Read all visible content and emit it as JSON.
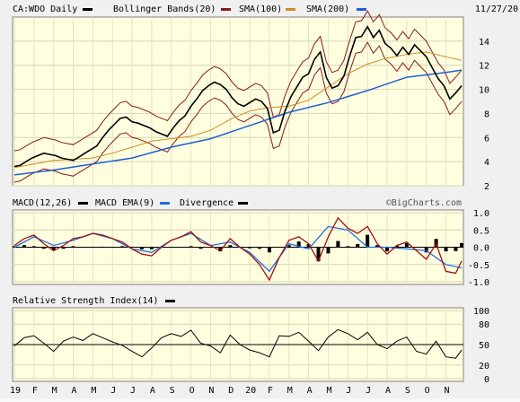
{
  "header": {
    "symbol": "CA:WDO Daily",
    "date": "11/27/20",
    "legend": [
      {
        "label": "Bollinger Bands(20)",
        "color": "#8b1a1a"
      },
      {
        "label": "SMA(100)",
        "color": "#d08a1e"
      },
      {
        "label": "SMA(200)",
        "color": "#1f5fd6"
      }
    ]
  },
  "macd": {
    "title": "MACD(12,26)",
    "legend": [
      {
        "label": "MACD EMA(9)",
        "color": "#1f6fe0"
      },
      {
        "label": "Divergence",
        "color": "#a01010"
      }
    ],
    "divergence_swatch": "#000000",
    "watermark": "©BigCharts.com"
  },
  "rsi": {
    "title": "Relative Strength Index(14)"
  },
  "chart_data": [
    {
      "type": "line",
      "title": "CA:WDO Daily",
      "ylim": [
        2,
        16
      ],
      "yticks": [
        2,
        4,
        6,
        8,
        10,
        12,
        14
      ],
      "grid": true,
      "legend_placement": "top",
      "x_labels": [
        "19",
        "F",
        "M",
        "A",
        "M",
        "J",
        "J",
        "A",
        "S",
        "O",
        "N",
        "D",
        "20",
        "F",
        "M",
        "A",
        "M",
        "J",
        "J",
        "A",
        "S",
        "O",
        "N"
      ],
      "series": [
        {
          "name": "price",
          "x": [
            0,
            0.3,
            0.6,
            0.9,
            1.2,
            1.5,
            1.8,
            2.1,
            2.4,
            2.7,
            3.0,
            3.3,
            3.6,
            3.9,
            4.2,
            4.5,
            4.8,
            5.1,
            5.4,
            5.7,
            6.0,
            6.3,
            6.6,
            6.9,
            7.2,
            7.5,
            7.8,
            8.1,
            8.4,
            8.7,
            9.0,
            9.3,
            9.6,
            9.9,
            10.2,
            10.5,
            10.8,
            11.1,
            11.4,
            11.7,
            12.0,
            12.3,
            12.6,
            12.9,
            13.2,
            13.5,
            13.8,
            14.1,
            14.4,
            14.7,
            15.0,
            15.3,
            15.6,
            15.9,
            16.2,
            16.5,
            16.8,
            17.1,
            17.4,
            17.7,
            18.0,
            18.3,
            18.6,
            18.9,
            19.2,
            19.5,
            19.8,
            20.1,
            20.4,
            20.7,
            21.0,
            21.3,
            21.6,
            21.9,
            22.2,
            22.5,
            22.8
          ],
          "y": [
            3.6,
            3.7,
            4.0,
            4.3,
            4.5,
            4.7,
            4.6,
            4.5,
            4.3,
            4.2,
            4.1,
            4.4,
            4.7,
            5.0,
            5.3,
            6.0,
            6.6,
            7.1,
            7.6,
            7.7,
            7.3,
            7.2,
            7.0,
            6.8,
            6.5,
            6.3,
            6.1,
            6.8,
            7.4,
            7.8,
            8.6,
            9.2,
            9.9,
            10.3,
            10.6,
            10.4,
            10.0,
            9.3,
            8.8,
            8.6,
            8.9,
            9.2,
            9.0,
            8.4,
            6.4,
            6.6,
            8.2,
            9.4,
            10.2,
            11.0,
            11.3,
            12.5,
            13.1,
            11.0,
            10.1,
            10.3,
            11.1,
            12.8,
            14.3,
            14.4,
            15.2,
            14.3,
            14.9,
            13.8,
            13.4,
            12.8,
            13.5,
            12.9,
            13.7,
            13.2,
            12.7,
            11.8,
            10.9,
            10.3,
            9.2,
            9.7,
            10.3
          ]
        },
        {
          "name": "SMA(100)",
          "x": [
            0,
            1,
            2,
            3,
            4,
            5,
            6,
            7,
            8,
            9,
            10,
            11,
            12,
            13,
            14,
            15,
            16,
            17,
            18,
            19,
            20,
            21,
            22,
            22.8
          ],
          "y": [
            3.5,
            3.8,
            4.1,
            4.2,
            4.3,
            4.7,
            5.2,
            5.7,
            5.9,
            6.1,
            6.6,
            7.5,
            8.2,
            8.5,
            8.6,
            9.1,
            10.2,
            11.3,
            12.1,
            12.6,
            12.9,
            13.1,
            12.7,
            12.4
          ]
        },
        {
          "name": "SMA(200)",
          "x": [
            0,
            2,
            4,
            6,
            8,
            10,
            12,
            14,
            16,
            18,
            20,
            22,
            22.8
          ],
          "y": [
            2.9,
            3.3,
            3.8,
            4.3,
            5.2,
            5.9,
            7.0,
            8.1,
            8.9,
            9.9,
            11.0,
            11.4,
            11.6
          ]
        }
      ]
    },
    {
      "type": "line",
      "title": "MACD(12,26)",
      "ylim": [
        -1.0,
        1.0
      ],
      "yticks": [
        -1.0,
        -0.5,
        0.0,
        0.5,
        1.0
      ],
      "series": [
        {
          "name": "MACD(12,26)",
          "x": [
            0,
            0.5,
            1,
            1.5,
            2,
            2.5,
            3,
            3.5,
            4,
            4.5,
            5,
            5.5,
            6,
            6.5,
            7,
            7.5,
            8,
            8.5,
            9,
            9.5,
            10,
            10.5,
            11,
            11.5,
            12,
            12.5,
            13,
            13.5,
            14,
            14.5,
            15,
            15.5,
            16,
            16.5,
            17,
            17.5,
            18,
            18.5,
            19,
            19.5,
            20,
            20.5,
            21,
            21.5,
            22,
            22.5,
            22.8
          ],
          "y": [
            0.05,
            0.25,
            0.35,
            0.1,
            -0.1,
            0.05,
            0.25,
            0.3,
            0.4,
            0.35,
            0.25,
            0.15,
            -0.05,
            -0.2,
            -0.25,
            0.0,
            0.2,
            0.3,
            0.45,
            0.15,
            0.05,
            -0.1,
            0.25,
            0.0,
            -0.2,
            -0.5,
            -0.95,
            -0.3,
            0.2,
            0.3,
            0.1,
            -0.4,
            0.3,
            0.85,
            0.55,
            0.4,
            0.6,
            0.1,
            -0.2,
            0.05,
            0.15,
            -0.1,
            -0.35,
            0.1,
            -0.7,
            -0.75,
            -0.4
          ]
        },
        {
          "name": "MACD EMA(9)",
          "x": [
            0,
            1,
            2,
            3,
            4,
            5,
            6,
            7,
            8,
            9,
            10,
            11,
            12,
            13,
            14,
            15,
            16,
            17,
            18,
            19,
            20,
            21,
            22,
            22.8
          ],
          "y": [
            0.0,
            0.3,
            0.05,
            0.2,
            0.4,
            0.25,
            -0.05,
            -0.15,
            0.2,
            0.4,
            0.05,
            0.15,
            -0.15,
            -0.7,
            0.1,
            -0.05,
            0.6,
            0.5,
            0.0,
            0.0,
            -0.05,
            -0.1,
            -0.5,
            -0.6
          ]
        }
      ]
    },
    {
      "type": "line",
      "title": "Relative Strength Index(14)",
      "ylim": [
        0,
        100
      ],
      "yticks": [
        0,
        20,
        50,
        80,
        100
      ],
      "series": [
        {
          "name": "Relative Strength Index(14)",
          "x": [
            0,
            0.5,
            1,
            1.5,
            2,
            2.5,
            3,
            3.5,
            4,
            4.5,
            5,
            5.5,
            6,
            6.5,
            7,
            7.5,
            8,
            8.5,
            9,
            9.5,
            10,
            10.5,
            11,
            11.5,
            12,
            12.5,
            13,
            13.5,
            14,
            14.5,
            15,
            15.5,
            16,
            16.5,
            17,
            17.5,
            18,
            18.5,
            19,
            19.5,
            20,
            20.5,
            21,
            21.5,
            22,
            22.5,
            22.8
          ],
          "y": [
            48,
            60,
            63,
            52,
            40,
            55,
            61,
            56,
            66,
            60,
            54,
            49,
            40,
            32,
            45,
            60,
            66,
            62,
            71,
            52,
            48,
            38,
            64,
            50,
            42,
            38,
            32,
            63,
            62,
            68,
            55,
            41,
            61,
            72,
            66,
            57,
            68,
            50,
            44,
            55,
            61,
            40,
            36,
            55,
            32,
            30,
            42
          ]
        }
      ]
    }
  ]
}
